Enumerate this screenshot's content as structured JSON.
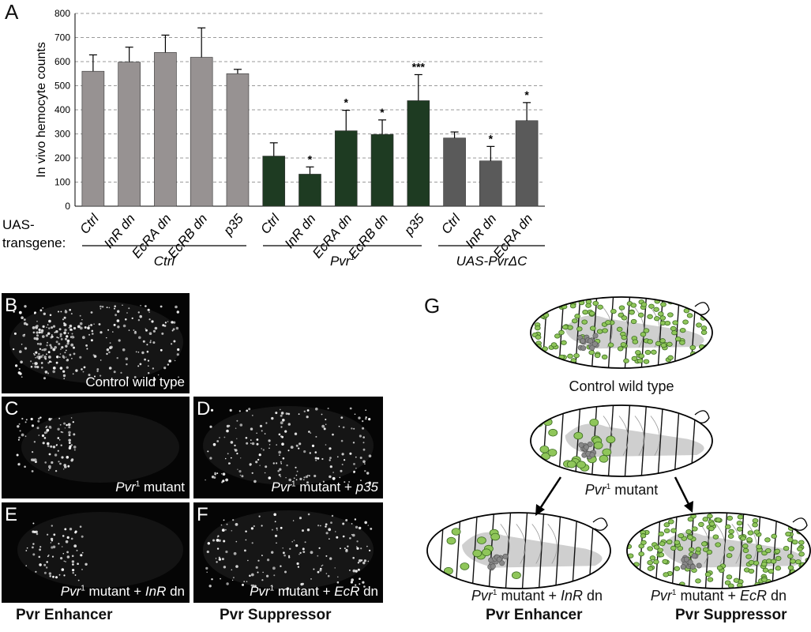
{
  "panelA": {
    "letter": "A",
    "chart_data": {
      "type": "bar",
      "ylabel": "In vivo hemocyte counts",
      "ylim": [
        0,
        800
      ],
      "yticks": [
        "0",
        "100",
        "200",
        "300",
        "400",
        "500",
        "600",
        "700",
        "800"
      ],
      "grid": true,
      "categories": [
        "Ctrl",
        "InR dn",
        "EcRA dn",
        "EcRB dn",
        "p35",
        "Ctrl",
        "InR dn",
        "EcRA dn",
        "EcRB dn",
        "p35",
        "Ctrl",
        "InR dn",
        "EcRA dn"
      ],
      "values": [
        560,
        598,
        638,
        618,
        550,
        208,
        133,
        313,
        298,
        438,
        283,
        188,
        355
      ],
      "errors": [
        68,
        62,
        72,
        122,
        18,
        55,
        30,
        85,
        60,
        108,
        25,
        60,
        75
      ],
      "significance": [
        "",
        "",
        "",
        "",
        "",
        "",
        "*",
        "*",
        "*",
        "***",
        "",
        "*",
        "*"
      ],
      "bar_groups": [
        0,
        0,
        0,
        0,
        0,
        1,
        1,
        1,
        1,
        1,
        2,
        2,
        2
      ],
      "group_colors": [
        "#979292",
        "#1e3b22",
        "#5a5a5a"
      ],
      "groups": [
        {
          "label": "Ctrl"
        },
        {
          "label": "Pvr",
          "sup": "1"
        },
        {
          "label": "UAS-PvrΔC"
        }
      ],
      "xlabel_prefix": [
        "UAS-",
        "transgene:"
      ]
    }
  },
  "panelB": {
    "letter": "B",
    "caption": "Control wild type"
  },
  "panelC": {
    "letter": "C",
    "caption_it": "Pvr",
    "caption_sup": "1",
    "caption_rest": " mutant"
  },
  "panelD": {
    "letter": "D",
    "caption_it": "Pvr",
    "caption_sup": "1",
    "caption_rest": " mutant + ",
    "caption_it2": "p35"
  },
  "panelE": {
    "letter": "E",
    "caption_it": "Pvr",
    "caption_sup": "1",
    "caption_rest": " mutant + ",
    "caption_it2": "InR",
    "caption_tail": " dn"
  },
  "panelF": {
    "letter": "F",
    "caption_it": "Pvr",
    "caption_sup": "1",
    "caption_rest": " mutant + ",
    "caption_it2": "EcR",
    "caption_tail": " dn"
  },
  "bottom_labels": {
    "enhancer": "Pvr Enhancer",
    "suppressor": "Pvr Suppressor"
  },
  "panelG": {
    "letter": "G",
    "wt_caption": "Control wild type",
    "mut_caption_it": "Pvr",
    "mut_caption_sup": "1",
    "mut_caption_rest": " mutant",
    "enh_caption_it": "Pvr",
    "enh_caption_sup": "1",
    "enh_caption_rest": " mutant + ",
    "enh_caption_it2": "InR",
    "enh_caption_tail": " dn",
    "sup_caption_it": "Pvr",
    "sup_caption_sup": "1",
    "sup_caption_rest": " mutant + ",
    "sup_caption_it2": "EcR",
    "sup_caption_tail": " dn",
    "enhancer": "Pvr Enhancer",
    "suppressor": "Pvr Suppressor"
  },
  "colors": {
    "hemocyte": "#8fc65a",
    "hemocyte_edge": "#3c6b22",
    "cluster": "#888888",
    "gut": "#cfcfcf"
  }
}
